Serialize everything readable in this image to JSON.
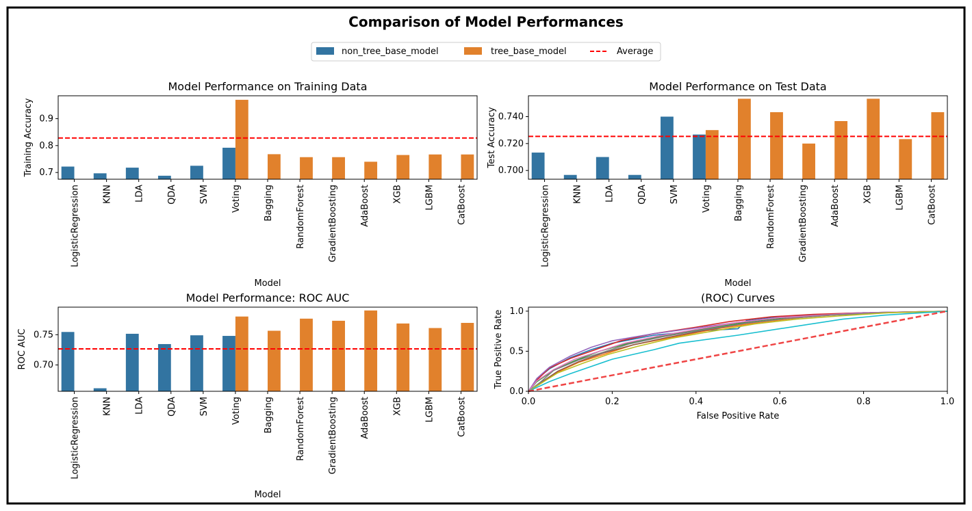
{
  "figure": {
    "title": "Comparison of Model Performances",
    "legend": {
      "placement": "top-center",
      "entries": [
        {
          "label": "non_tree_base_model",
          "color": "#3274a1",
          "kind": "patch"
        },
        {
          "label": "tree_base_model",
          "color": "#e1812c",
          "kind": "patch"
        },
        {
          "label": "Average",
          "color": "#ff0000",
          "kind": "dashed-line"
        }
      ]
    }
  },
  "colors": {
    "non_tree": "#3274a1",
    "tree": "#e1812c",
    "average": "#ff0000",
    "diagonal": "#ef4444"
  },
  "chart_data": [
    {
      "id": "train",
      "type": "bar",
      "title": "Model Performance on Training Data",
      "xlabel": "Model",
      "ylabel": "Training Accuracy",
      "ylim": [
        0.675,
        0.985
      ],
      "yticks": [
        0.7,
        0.8,
        0.9
      ],
      "ytick_labels": [
        "0.7",
        "0.8",
        "0.9"
      ],
      "average": 0.828,
      "categories": [
        "LogisticRegression",
        "KNN",
        "LDA",
        "QDA",
        "SVM",
        "Voting",
        "Bagging",
        "RandomForest",
        "GradientBoosting",
        "AdaBoost",
        "XGB",
        "LGBM",
        "CatBoost"
      ],
      "series": [
        {
          "name": "non_tree_base_model",
          "values": [
            0.722,
            0.697,
            0.718,
            0.688,
            0.725,
            0.792,
            null,
            null,
            null,
            null,
            null,
            null,
            null
          ]
        },
        {
          "name": "tree_base_model",
          "values": [
            null,
            null,
            null,
            null,
            null,
            0.97,
            0.768,
            0.757,
            0.757,
            0.74,
            0.765,
            0.767,
            0.767
          ]
        }
      ]
    },
    {
      "id": "test",
      "type": "bar",
      "title": "Model Performance on Test Data",
      "xlabel": "Model",
      "ylabel": "Test Accuracy",
      "ylim": [
        0.6935,
        0.7555
      ],
      "yticks": [
        0.7,
        0.72,
        0.74
      ],
      "ytick_labels": [
        "0.700",
        "0.720",
        "0.740"
      ],
      "average": 0.7253,
      "categories": [
        "LogisticRegression",
        "KNN",
        "LDA",
        "QDA",
        "SVM",
        "Voting",
        "Bagging",
        "RandomForest",
        "GradientBoosting",
        "AdaBoost",
        "XGB",
        "LGBM",
        "CatBoost"
      ],
      "series": [
        {
          "name": "non_tree_base_model",
          "values": [
            0.7133,
            0.6967,
            0.71,
            0.6967,
            0.74,
            0.7267,
            null,
            null,
            null,
            null,
            null,
            null,
            null
          ]
        },
        {
          "name": "tree_base_model",
          "values": [
            null,
            null,
            null,
            null,
            null,
            0.73,
            0.7533,
            0.7433,
            0.72,
            0.7367,
            0.7533,
            0.7233,
            0.7433
          ]
        }
      ]
    },
    {
      "id": "auc",
      "type": "bar",
      "title": "Model Performance: ROC AUC",
      "xlabel": "Model",
      "ylabel": "ROC AUC",
      "ylim": [
        0.6565,
        0.7955
      ],
      "yticks": [
        0.7,
        0.75
      ],
      "ytick_labels": [
        "0.70",
        "0.75"
      ],
      "average": 0.7265,
      "categories": [
        "LogisticRegression",
        "KNN",
        "LDA",
        "QDA",
        "SVM",
        "Voting",
        "Bagging",
        "RandomForest",
        "GradientBoosting",
        "AdaBoost",
        "XGB",
        "LGBM",
        "CatBoost"
      ],
      "series": [
        {
          "name": "non_tree_base_model",
          "values": [
            0.7545,
            0.6615,
            0.7515,
            0.7345,
            0.749,
            0.748,
            null,
            null,
            null,
            null,
            null,
            null,
            null
          ]
        },
        {
          "name": "tree_base_model",
          "values": [
            null,
            null,
            null,
            null,
            null,
            0.78,
            0.7565,
            0.7765,
            0.773,
            0.79,
            0.7685,
            0.761,
            0.7695
          ]
        }
      ]
    },
    {
      "id": "roc",
      "type": "line",
      "title": "(ROC) Curves",
      "xlabel": "False Positive Rate",
      "ylabel": "True Positive Rate",
      "xlim": [
        0,
        1
      ],
      "ylim": [
        0,
        1.05
      ],
      "xticks": [
        0.0,
        0.2,
        0.4,
        0.6,
        0.8,
        1.0
      ],
      "xtick_labels": [
        "0.0",
        "0.2",
        "0.4",
        "0.6",
        "0.8",
        "1.0"
      ],
      "yticks": [
        0.0,
        0.5,
        1.0
      ],
      "ytick_labels": [
        "0.0",
        "0.5",
        "1.0"
      ],
      "diagonal": {
        "x": [
          0,
          1
        ],
        "y": [
          0,
          1
        ]
      },
      "series": [
        {
          "color": "#1f77b4",
          "x": [
            0,
            0.02,
            0.05,
            0.1,
            0.15,
            0.2,
            0.3,
            0.4,
            0.5,
            0.52,
            0.6,
            0.7,
            0.8,
            1
          ],
          "y": [
            0,
            0.15,
            0.28,
            0.42,
            0.52,
            0.6,
            0.7,
            0.75,
            0.78,
            0.88,
            0.93,
            0.96,
            0.98,
            1
          ]
        },
        {
          "color": "#ff7f0e",
          "x": [
            0,
            0.03,
            0.07,
            0.12,
            0.18,
            0.25,
            0.35,
            0.45,
            0.55,
            0.65,
            0.75,
            0.85,
            1
          ],
          "y": [
            0,
            0.1,
            0.24,
            0.36,
            0.46,
            0.58,
            0.68,
            0.78,
            0.86,
            0.92,
            0.96,
            0.98,
            1
          ]
        },
        {
          "color": "#2ca02c",
          "x": [
            0,
            0.02,
            0.06,
            0.11,
            0.17,
            0.24,
            0.33,
            0.43,
            0.53,
            0.63,
            0.73,
            0.85,
            1
          ],
          "y": [
            0,
            0.12,
            0.26,
            0.38,
            0.5,
            0.6,
            0.7,
            0.79,
            0.87,
            0.93,
            0.96,
            0.98,
            1
          ]
        },
        {
          "color": "#d62728",
          "x": [
            0,
            0.02,
            0.05,
            0.1,
            0.16,
            0.22,
            0.3,
            0.4,
            0.48,
            0.58,
            0.68,
            0.8,
            1
          ],
          "y": [
            0,
            0.14,
            0.29,
            0.41,
            0.52,
            0.63,
            0.72,
            0.8,
            0.87,
            0.93,
            0.96,
            0.98,
            1
          ]
        },
        {
          "color": "#9467bd",
          "x": [
            0,
            0.02,
            0.05,
            0.1,
            0.15,
            0.2,
            0.3,
            0.4,
            0.5,
            0.6,
            0.7,
            0.8,
            1
          ],
          "y": [
            0,
            0.16,
            0.3,
            0.44,
            0.55,
            0.63,
            0.72,
            0.79,
            0.86,
            0.92,
            0.95,
            0.98,
            1
          ]
        },
        {
          "color": "#8c564b",
          "x": [
            0,
            0.03,
            0.07,
            0.12,
            0.18,
            0.25,
            0.33,
            0.42,
            0.52,
            0.62,
            0.72,
            0.84,
            1
          ],
          "y": [
            0,
            0.11,
            0.25,
            0.37,
            0.48,
            0.58,
            0.67,
            0.76,
            0.85,
            0.91,
            0.95,
            0.98,
            1
          ]
        },
        {
          "color": "#e377c2",
          "x": [
            0,
            0.02,
            0.06,
            0.11,
            0.17,
            0.23,
            0.31,
            0.41,
            0.5,
            0.6,
            0.7,
            0.82,
            1
          ],
          "y": [
            0,
            0.13,
            0.27,
            0.4,
            0.5,
            0.6,
            0.69,
            0.78,
            0.86,
            0.92,
            0.95,
            0.98,
            1
          ]
        },
        {
          "color": "#7f7f7f",
          "x": [
            0,
            0.03,
            0.06,
            0.12,
            0.18,
            0.24,
            0.32,
            0.42,
            0.52,
            0.62,
            0.72,
            0.84,
            1
          ],
          "y": [
            0,
            0.12,
            0.26,
            0.39,
            0.49,
            0.59,
            0.68,
            0.77,
            0.85,
            0.91,
            0.95,
            0.98,
            1
          ]
        },
        {
          "color": "#bcbd22",
          "x": [
            0,
            0.03,
            0.07,
            0.13,
            0.19,
            0.26,
            0.34,
            0.44,
            0.54,
            0.64,
            0.74,
            0.86,
            1
          ],
          "y": [
            0,
            0.1,
            0.23,
            0.35,
            0.46,
            0.56,
            0.66,
            0.75,
            0.84,
            0.9,
            0.94,
            0.98,
            1
          ]
        },
        {
          "color": "#17becf",
          "x": [
            0,
            0.05,
            0.1,
            0.2,
            0.3,
            0.36,
            0.5,
            0.6,
            0.75,
            0.85,
            1
          ],
          "y": [
            0,
            0.12,
            0.22,
            0.4,
            0.52,
            0.6,
            0.7,
            0.78,
            0.9,
            0.95,
            1
          ]
        }
      ]
    }
  ]
}
